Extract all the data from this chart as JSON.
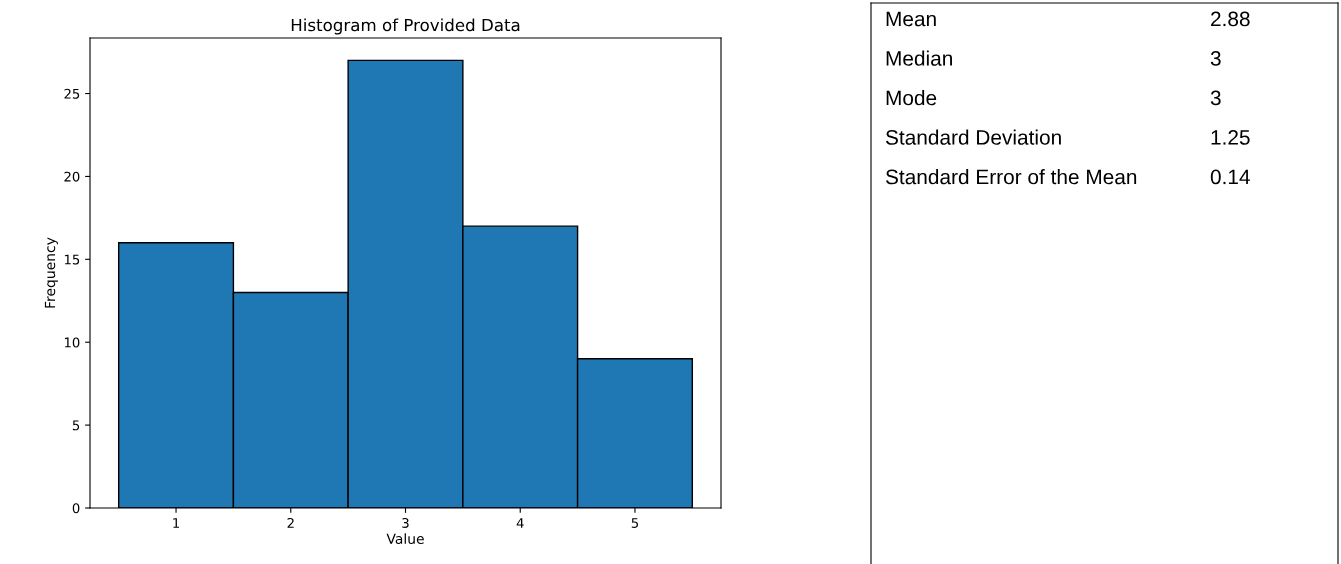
{
  "chart_data": [
    {
      "type": "histogram",
      "title": "Histogram of Provided Data",
      "xlabel": "Value",
      "ylabel": "Frequency",
      "bins": [
        0.5,
        1.5,
        2.5,
        3.5,
        4.5,
        5.5
      ],
      "values": [
        16,
        13,
        27,
        17,
        9
      ],
      "color": "#1f77b4",
      "xlim": [
        0.25,
        5.75
      ],
      "ylim": [
        0,
        28.35
      ],
      "xticks": [
        1,
        2,
        3,
        4,
        5
      ],
      "yticks": [
        0,
        5,
        10,
        15,
        20,
        25
      ],
      "grid": false
    },
    {
      "type": "other",
      "annotations": [
        "Mean",
        "2.88",
        "Median",
        "3",
        "Mode",
        "3",
        "Standard Deviation",
        "1.25",
        "Standard Error of the Mean",
        "0.14"
      ]
    }
  ]
}
